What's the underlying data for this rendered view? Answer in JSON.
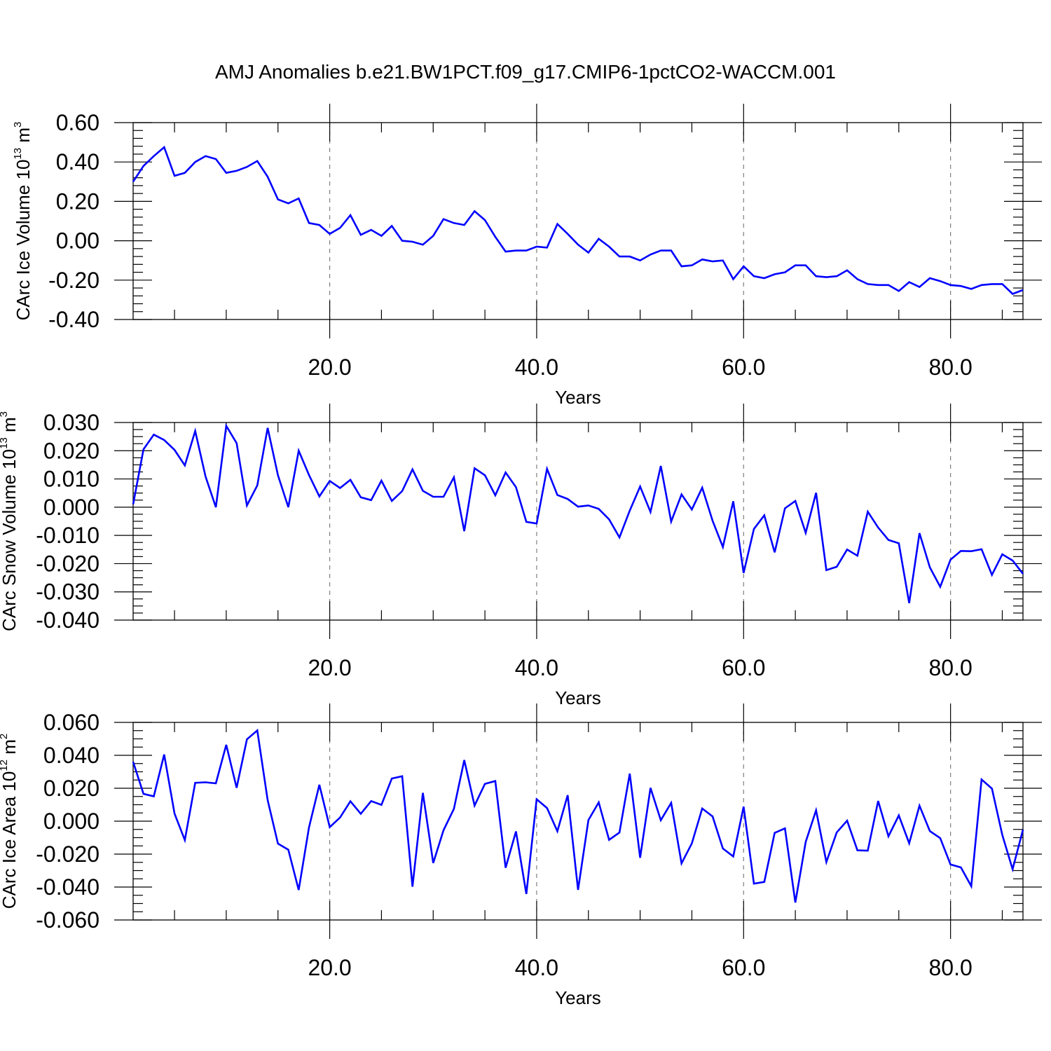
{
  "title": "AMJ Anomalies b.e21.BW1PCT.f09_g17.CMIP6-1pctCO2-WACCM.001",
  "line_color": "#0000ff",
  "chart_data": [
    {
      "type": "line",
      "xlabel": "Years",
      "ylabel": "CArc Ice Volume 10",
      "ylabel_sup": "13",
      "ylabel_unit": " m",
      "ylabel_unit_sup": "3",
      "xlim": [
        1,
        87
      ],
      "ylim": [
        -0.4,
        0.6
      ],
      "xticks": [
        20,
        40,
        60,
        80
      ],
      "xtick_labels": [
        "20.0",
        "40.0",
        "60.0",
        "80.0"
      ],
      "yticks": [
        0.6,
        0.4,
        0.2,
        0.0,
        -0.2,
        -0.4
      ],
      "ytick_labels": [
        "0.60",
        "0.40",
        "0.20",
        "0.00",
        "-0.20",
        "-0.40"
      ],
      "grid": "vertical dashed at major x ticks",
      "x": [
        1,
        2,
        3,
        4,
        5,
        6,
        7,
        8,
        9,
        10,
        11,
        12,
        13,
        14,
        15,
        16,
        17,
        18,
        19,
        20,
        21,
        22,
        23,
        24,
        25,
        26,
        27,
        28,
        29,
        30,
        31,
        32,
        33,
        34,
        35,
        36,
        37,
        38,
        39,
        40,
        41,
        42,
        43,
        44,
        45,
        46,
        47,
        48,
        49,
        50,
        51,
        52,
        53,
        54,
        55,
        56,
        57,
        58,
        59,
        60,
        61,
        62,
        63,
        64,
        65,
        66,
        67,
        68,
        69,
        70,
        71,
        72,
        73,
        74,
        75,
        76,
        77,
        78,
        79,
        80,
        81,
        82,
        83,
        84,
        85,
        86,
        87
      ],
      "values": [
        0.3,
        0.38,
        0.43,
        0.475,
        0.33,
        0.345,
        0.4,
        0.43,
        0.415,
        0.345,
        0.355,
        0.375,
        0.405,
        0.325,
        0.21,
        0.19,
        0.215,
        0.09,
        0.08,
        0.035,
        0.065,
        0.13,
        0.03,
        0.055,
        0.025,
        0.075,
        0.0,
        -0.005,
        -0.02,
        0.025,
        0.11,
        0.09,
        0.08,
        0.15,
        0.105,
        0.02,
        -0.055,
        -0.05,
        -0.05,
        -0.03,
        -0.035,
        0.085,
        0.035,
        -0.02,
        -0.06,
        0.01,
        -0.03,
        -0.08,
        -0.08,
        -0.1,
        -0.07,
        -0.05,
        -0.05,
        -0.13,
        -0.125,
        -0.095,
        -0.105,
        -0.1,
        -0.195,
        -0.13,
        -0.18,
        -0.19,
        -0.17,
        -0.16,
        -0.125,
        -0.125,
        -0.18,
        -0.185,
        -0.18,
        -0.15,
        -0.195,
        -0.22,
        -0.225,
        -0.225,
        -0.255,
        -0.21,
        -0.235,
        -0.19,
        -0.205,
        -0.225,
        -0.23,
        -0.245,
        -0.225,
        -0.22,
        -0.22,
        -0.27,
        -0.25
      ]
    },
    {
      "type": "line",
      "xlabel": "Years",
      "ylabel": "CArc Snow Volume 10",
      "ylabel_sup": "13",
      "ylabel_unit": " m",
      "ylabel_unit_sup": "3",
      "xlim": [
        1,
        87
      ],
      "ylim": [
        -0.04,
        0.03
      ],
      "xticks": [
        20,
        40,
        60,
        80
      ],
      "xtick_labels": [
        "20.0",
        "40.0",
        "60.0",
        "80.0"
      ],
      "yticks": [
        0.03,
        0.02,
        0.01,
        0.0,
        -0.01,
        -0.02,
        -0.03,
        -0.04
      ],
      "ytick_labels": [
        "0.030",
        "0.020",
        "0.010",
        "0.000",
        "-0.010",
        "-0.020",
        "-0.030",
        "-0.040"
      ],
      "grid": "vertical dashed at major x ticks",
      "x": [
        1,
        2,
        3,
        4,
        5,
        6,
        7,
        8,
        9,
        10,
        11,
        12,
        13,
        14,
        15,
        16,
        17,
        18,
        19,
        20,
        21,
        22,
        23,
        24,
        25,
        26,
        27,
        28,
        29,
        30,
        31,
        32,
        33,
        34,
        35,
        36,
        37,
        38,
        39,
        40,
        41,
        42,
        43,
        44,
        45,
        46,
        47,
        48,
        49,
        50,
        51,
        52,
        53,
        54,
        55,
        56,
        57,
        58,
        59,
        60,
        61,
        62,
        63,
        64,
        65,
        66,
        67,
        68,
        69,
        70,
        71,
        72,
        73,
        74,
        75,
        76,
        77,
        78,
        79,
        80,
        81,
        82,
        83,
        84,
        85,
        86,
        87
      ],
      "values": [
        0.001,
        0.0205,
        0.0257,
        0.0238,
        0.0203,
        0.0148,
        0.027,
        0.0108,
        0.0,
        0.0288,
        0.0227,
        0.0006,
        0.0077,
        0.0281,
        0.0113,
        0.0,
        0.02,
        0.0114,
        0.0038,
        0.0093,
        0.0068,
        0.0097,
        0.0035,
        0.0025,
        0.0094,
        0.0022,
        0.0057,
        0.0134,
        0.0058,
        0.0037,
        0.0037,
        0.0106,
        -0.0085,
        0.0138,
        0.0113,
        0.0042,
        0.0123,
        0.0071,
        -0.0052,
        -0.0058,
        0.0136,
        0.0043,
        0.0029,
        0.0002,
        0.0006,
        -0.0006,
        -0.0043,
        -0.0107,
        -0.0012,
        0.0073,
        -0.0017,
        0.0146,
        -0.0051,
        0.0045,
        -0.0008,
        0.0069,
        -0.0048,
        -0.0141,
        0.0021,
        -0.0233,
        -0.0077,
        -0.0029,
        -0.016,
        -0.0004,
        0.0022,
        -0.0091,
        0.0051,
        -0.0223,
        -0.0211,
        -0.015,
        -0.0172,
        -0.0016,
        -0.0072,
        -0.0116,
        -0.0128,
        -0.034,
        -0.0092,
        -0.0213,
        -0.0282,
        -0.0186,
        -0.0155,
        -0.0156,
        -0.0149,
        -0.024,
        -0.0167,
        -0.0189,
        -0.0236
      ]
    },
    {
      "type": "line",
      "xlabel": "Years",
      "ylabel": "CArc Ice Area 10",
      "ylabel_sup": "12",
      "ylabel_unit": " m",
      "ylabel_unit_sup": "2",
      "xlim": [
        1,
        87
      ],
      "ylim": [
        -0.06,
        0.06
      ],
      "xticks": [
        20,
        40,
        60,
        80
      ],
      "xtick_labels": [
        "20.0",
        "40.0",
        "60.0",
        "80.0"
      ],
      "yticks": [
        0.06,
        0.04,
        0.02,
        0.0,
        -0.02,
        -0.04,
        -0.06
      ],
      "ytick_labels": [
        "0.060",
        "0.040",
        "0.020",
        "0.000",
        "-0.020",
        "-0.040",
        "-0.060"
      ],
      "grid": "vertical dashed at major x ticks",
      "x": [
        1,
        2,
        3,
        4,
        5,
        6,
        7,
        8,
        9,
        10,
        11,
        12,
        13,
        14,
        15,
        16,
        17,
        18,
        19,
        20,
        21,
        22,
        23,
        24,
        25,
        26,
        27,
        28,
        29,
        30,
        31,
        32,
        33,
        34,
        35,
        36,
        37,
        38,
        39,
        40,
        41,
        42,
        43,
        44,
        45,
        46,
        47,
        48,
        49,
        50,
        51,
        52,
        53,
        54,
        55,
        56,
        57,
        58,
        59,
        60,
        61,
        62,
        63,
        64,
        65,
        66,
        67,
        68,
        69,
        70,
        71,
        72,
        73,
        74,
        75,
        76,
        77,
        78,
        79,
        80,
        81,
        82,
        83,
        84,
        85,
        86,
        87
      ],
      "values": [
        0.036,
        0.0166,
        0.0151,
        0.0405,
        0.0046,
        -0.0115,
        0.0233,
        0.0236,
        0.023,
        0.0464,
        0.0203,
        0.0497,
        0.0551,
        0.0128,
        -0.0136,
        -0.0173,
        -0.0418,
        -0.0038,
        0.0221,
        -0.0036,
        0.0022,
        0.0121,
        0.0045,
        0.0122,
        0.0099,
        0.0259,
        0.0273,
        -0.0398,
        0.0172,
        -0.0254,
        -0.0055,
        0.0075,
        0.0371,
        0.0095,
        0.0227,
        0.0244,
        -0.0283,
        -0.0062,
        -0.0442,
        0.0133,
        0.008,
        -0.0061,
        0.0158,
        -0.0417,
        0.0007,
        0.0114,
        -0.0113,
        -0.0069,
        0.0289,
        -0.0222,
        0.0202,
        0.0006,
        0.0111,
        -0.0256,
        -0.0135,
        0.0077,
        0.0029,
        -0.0166,
        -0.0214,
        0.0088,
        -0.0379,
        -0.0369,
        -0.0071,
        -0.0044,
        -0.0494,
        -0.0126,
        0.0066,
        -0.0248,
        -0.0068,
        0.0003,
        -0.0177,
        -0.0179,
        0.0123,
        -0.0092,
        0.0035,
        -0.0134,
        0.0094,
        -0.006,
        -0.0103,
        -0.0263,
        -0.0281,
        -0.0395,
        0.0253,
        0.0198,
        -0.0084,
        -0.0292,
        -0.0052
      ]
    }
  ]
}
